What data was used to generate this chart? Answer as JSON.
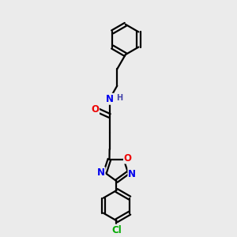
{
  "bg_color": "#ebebeb",
  "bond_color": "#000000",
  "bond_width": 1.6,
  "atom_colors": {
    "N": "#0000ee",
    "O": "#ee0000",
    "Cl": "#00aa00",
    "C": "#000000",
    "H": "#4444aa"
  },
  "font_size": 8.5
}
